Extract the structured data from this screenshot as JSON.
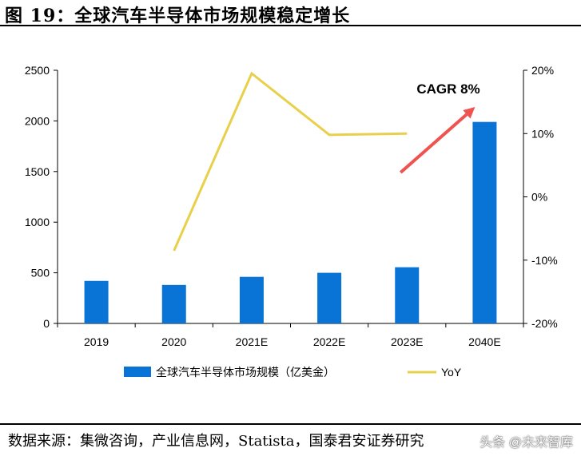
{
  "figure": {
    "title": "图 19：全球汽车半导体市场规模稳定增长",
    "source": "数据来源：集微咨询，产业信息网，Statista，国泰君安证券研究",
    "watermark": "头条 @未来智库"
  },
  "chart_data": {
    "type": "bar",
    "categories": [
      "2019",
      "2020",
      "2021E",
      "2022E",
      "2023E",
      "2040E"
    ],
    "series": [
      {
        "name": "全球汽车半导体市场规模（亿美金）",
        "type": "bar",
        "axis": "left",
        "values": [
          420,
          380,
          460,
          500,
          555,
          1990
        ],
        "color": "#0a74d6"
      },
      {
        "name": "YoY",
        "type": "line",
        "axis": "right",
        "values": [
          null,
          -8.5,
          19.5,
          9.8,
          10.0,
          null
        ],
        "color": "#e8d04a"
      }
    ],
    "y_left": {
      "min": 0,
      "max": 2500,
      "ticks": [
        "0",
        "500",
        "1000",
        "1500",
        "2000",
        "2500"
      ]
    },
    "y_right": {
      "min": -20,
      "max": 20,
      "ticks": [
        "-20%",
        "-10%",
        "0%",
        "10%",
        "20%"
      ]
    },
    "annotation": {
      "text": "CAGR 8%",
      "arrow_color": "#ef5350"
    },
    "legend_position": "bottom"
  }
}
